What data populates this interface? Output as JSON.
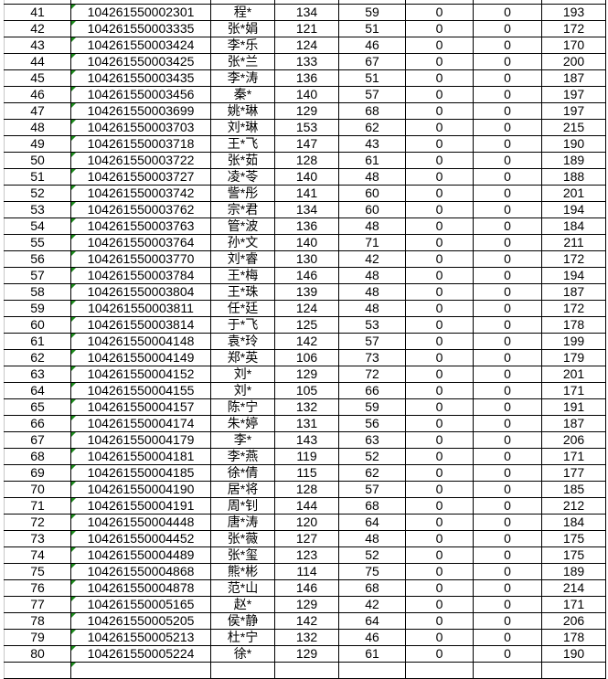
{
  "sheet": {
    "rows": [
      [
        "41",
        "104261550002301",
        "程*",
        "134",
        "59",
        "0",
        "0",
        "193"
      ],
      [
        "42",
        "104261550003335",
        "张*娟",
        "121",
        "51",
        "0",
        "0",
        "172"
      ],
      [
        "43",
        "104261550003424",
        "李*乐",
        "124",
        "46",
        "0",
        "0",
        "170"
      ],
      [
        "44",
        "104261550003425",
        "张*兰",
        "133",
        "67",
        "0",
        "0",
        "200"
      ],
      [
        "45",
        "104261550003435",
        "李*涛",
        "136",
        "51",
        "0",
        "0",
        "187"
      ],
      [
        "46",
        "104261550003456",
        "秦*",
        "140",
        "57",
        "0",
        "0",
        "197"
      ],
      [
        "47",
        "104261550003699",
        "姚*琳",
        "129",
        "68",
        "0",
        "0",
        "197"
      ],
      [
        "48",
        "104261550003703",
        "刘*琳",
        "153",
        "62",
        "0",
        "0",
        "215"
      ],
      [
        "49",
        "104261550003718",
        "王*飞",
        "147",
        "43",
        "0",
        "0",
        "190"
      ],
      [
        "50",
        "104261550003722",
        "张*茹",
        "128",
        "61",
        "0",
        "0",
        "189"
      ],
      [
        "51",
        "104261550003727",
        "凌*苓",
        "140",
        "48",
        "0",
        "0",
        "188"
      ],
      [
        "52",
        "104261550003742",
        "訾*彤",
        "141",
        "60",
        "0",
        "0",
        "201"
      ],
      [
        "53",
        "104261550003762",
        "宗*君",
        "134",
        "60",
        "0",
        "0",
        "194"
      ],
      [
        "54",
        "104261550003763",
        "管*波",
        "136",
        "48",
        "0",
        "0",
        "184"
      ],
      [
        "55",
        "104261550003764",
        "孙*文",
        "140",
        "71",
        "0",
        "0",
        "211"
      ],
      [
        "56",
        "104261550003770",
        "刘*睿",
        "130",
        "42",
        "0",
        "0",
        "172"
      ],
      [
        "57",
        "104261550003784",
        "王*梅",
        "146",
        "48",
        "0",
        "0",
        "194"
      ],
      [
        "58",
        "104261550003804",
        "王*珠",
        "139",
        "48",
        "0",
        "0",
        "187"
      ],
      [
        "59",
        "104261550003811",
        "任*廷",
        "124",
        "48",
        "0",
        "0",
        "172"
      ],
      [
        "60",
        "104261550003814",
        "于*飞",
        "125",
        "53",
        "0",
        "0",
        "178"
      ],
      [
        "61",
        "104261550004148",
        "袁*玲",
        "142",
        "57",
        "0",
        "0",
        "199"
      ],
      [
        "62",
        "104261550004149",
        "郑*英",
        "106",
        "73",
        "0",
        "0",
        "179"
      ],
      [
        "63",
        "104261550004152",
        "刘*",
        "129",
        "72",
        "0",
        "0",
        "201"
      ],
      [
        "64",
        "104261550004155",
        "刘*",
        "105",
        "66",
        "0",
        "0",
        "171"
      ],
      [
        "65",
        "104261550004157",
        "陈*宁",
        "132",
        "59",
        "0",
        "0",
        "191"
      ],
      [
        "66",
        "104261550004174",
        "朱*婷",
        "131",
        "56",
        "0",
        "0",
        "187"
      ],
      [
        "67",
        "104261550004179",
        "李*",
        "143",
        "63",
        "0",
        "0",
        "206"
      ],
      [
        "68",
        "104261550004181",
        "李*燕",
        "119",
        "52",
        "0",
        "0",
        "171"
      ],
      [
        "69",
        "104261550004185",
        "徐*倩",
        "115",
        "62",
        "0",
        "0",
        "177"
      ],
      [
        "70",
        "104261550004190",
        "居*将",
        "128",
        "57",
        "0",
        "0",
        "185"
      ],
      [
        "71",
        "104261550004191",
        "周*钊",
        "144",
        "68",
        "0",
        "0",
        "212"
      ],
      [
        "72",
        "104261550004448",
        "唐*涛",
        "120",
        "64",
        "0",
        "0",
        "184"
      ],
      [
        "73",
        "104261550004452",
        "张*薇",
        "127",
        "48",
        "0",
        "0",
        "175"
      ],
      [
        "74",
        "104261550004489",
        "张*玺",
        "123",
        "52",
        "0",
        "0",
        "175"
      ],
      [
        "75",
        "104261550004868",
        "熊*彬",
        "114",
        "75",
        "0",
        "0",
        "189"
      ],
      [
        "76",
        "104261550004878",
        "范*山",
        "146",
        "68",
        "0",
        "0",
        "214"
      ],
      [
        "77",
        "104261550005165",
        "赵*",
        "129",
        "42",
        "0",
        "0",
        "171"
      ],
      [
        "78",
        "104261550005205",
        "侯*静",
        "142",
        "64",
        "0",
        "0",
        "206"
      ],
      [
        "79",
        "104261550005213",
        "杜*宁",
        "132",
        "46",
        "0",
        "0",
        "178"
      ],
      [
        "80",
        "104261550005224",
        "徐*",
        "129",
        "61",
        "0",
        "0",
        "190"
      ]
    ],
    "colors": {
      "grid": "#000000",
      "text_indicator": "#1e8c1e"
    }
  }
}
